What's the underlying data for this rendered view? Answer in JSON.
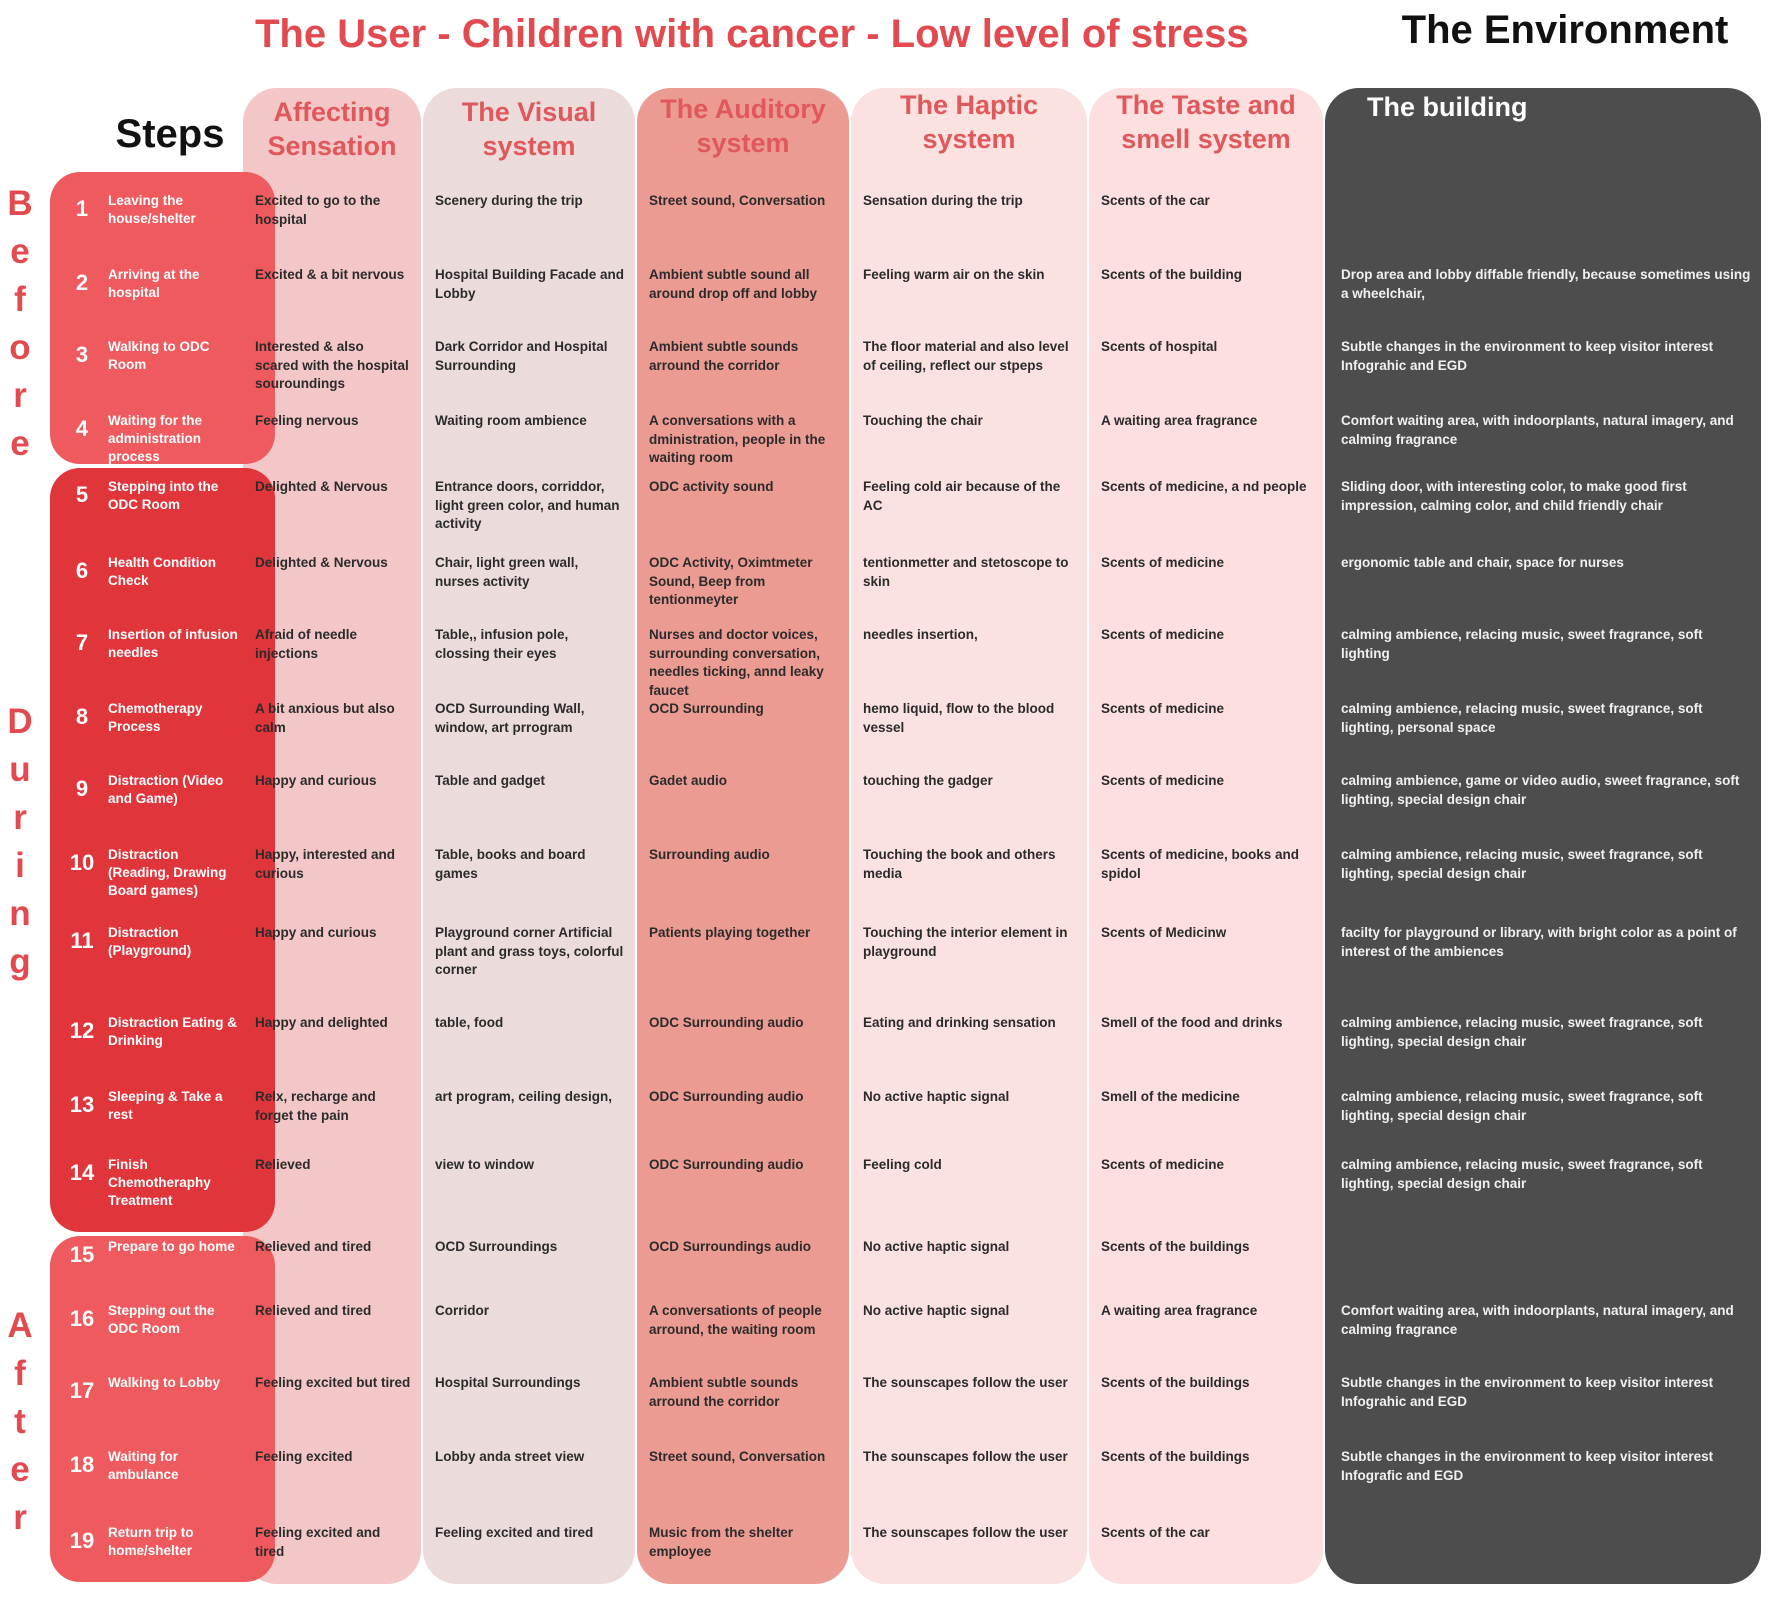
{
  "title": "The User - Children with cancer - Low level of stress",
  "environment_title": "The Environment",
  "steps_header": "Steps",
  "columns": [
    {
      "label": "Affecting Sensation",
      "color": "#f3c6c7"
    },
    {
      "label": "The Visual system",
      "color": "#ebdcdb"
    },
    {
      "label": "The Auditory system",
      "color": "#ec9b92"
    },
    {
      "label": "The Haptic system",
      "color": "#fbe1e0"
    },
    {
      "label": "The Taste and smell system",
      "color": "#fcdfde"
    },
    {
      "label": "The building",
      "color": "#4d4d4d"
    }
  ],
  "phases": [
    {
      "name": "Before",
      "letters": [
        "B",
        "e",
        "f",
        "o",
        "r",
        "e"
      ],
      "color": "#ef5a5e"
    },
    {
      "name": "During",
      "letters": [
        "D",
        "u",
        "r",
        "i",
        "n",
        "g"
      ],
      "color": "#e0353b"
    },
    {
      "name": "After",
      "letters": [
        "A",
        "f",
        "t",
        "e",
        "r"
      ],
      "color": "#ef5a5e"
    }
  ],
  "steps": [
    {
      "num": "1",
      "label": "Leaving the house/shelter",
      "affecting": "Excited to go to the hospital",
      "visual": "Scenery during the trip",
      "auditory": "Street sound, Conversation",
      "haptic": "Sensation during the trip",
      "taste_smell": "Scents of the car",
      "building": ""
    },
    {
      "num": "2",
      "label": "Arriving at the hospital",
      "affecting": "Excited & a bit nervous",
      "visual": "Hospital Building Facade and Lobby",
      "auditory": "Ambient subtle sound all around drop off and lobby",
      "haptic": "Feeling warm air on the skin",
      "taste_smell": "Scents of the building",
      "building": "Drop area and lobby diffable friendly, because sometimes using a wheelchair,"
    },
    {
      "num": "3",
      "label": "Walking to ODC Room",
      "affecting": "Interested & also scared with the hospital souroundings",
      "visual": "Dark Corridor and Hospital Surrounding",
      "auditory": "Ambient subtle sounds arround the corridor",
      "haptic": "The floor material and also level of ceiling, reflect our stpeps",
      "taste_smell": "Scents of hospital",
      "building": "Subtle changes in the environment to keep visitor interest Infograhic and EGD"
    },
    {
      "num": "4",
      "label": "Waiting for the administration process",
      "affecting": "Feeling nervous",
      "visual": "Waiting room ambience",
      "auditory": "A conversations with a dministration, people in the waiting room",
      "haptic": "Touching the chair",
      "taste_smell": "A waiting area fragrance",
      "building": "Comfort waiting area, with indoorplants, natural imagery, and calming fragrance"
    },
    {
      "num": "5",
      "label": "Stepping into the ODC Room",
      "affecting": "Delighted & Nervous",
      "visual": "Entrance doors, corriddor, light green color, and human activity",
      "auditory": "ODC activity sound",
      "haptic": "Feeling cold air because of the AC",
      "taste_smell": "Scents of medicine, a nd people",
      "building": "Sliding door, with interesting color, to make good first impression, calming color, and child friendly chair"
    },
    {
      "num": "6",
      "label": "Health Condition Check",
      "affecting": "Delighted & Nervous",
      "visual": "Chair, light green wall, nurses activity",
      "auditory": "ODC Activity, Oximtmeter Sound, Beep from tentionmeyter",
      "haptic": "tentionmetter and stetoscope to skin",
      "taste_smell": "Scents of medicine",
      "building": "ergonomic table and chair, space for nurses"
    },
    {
      "num": "7",
      "label": "Insertion of infusion needles",
      "affecting": "Afraid of needle injections",
      "visual": "Table,, infusion pole, clossing their eyes",
      "auditory": "Nurses and doctor voices, surrounding conversation, needles ticking, annd leaky faucet",
      "haptic": "needles insertion,",
      "taste_smell": "Scents of medicine",
      "building": "calming ambience, relacing music, sweet fragrance, soft lighting"
    },
    {
      "num": "8",
      "label": "Chemotherapy Process",
      "affecting": "A bit anxious but also calm",
      "visual": "OCD Surrounding Wall, window, art prrogram",
      "auditory": "OCD Surrounding",
      "haptic": "hemo liquid, flow to the blood vessel",
      "taste_smell": "Scents of medicine",
      "building": "calming ambience, relacing music, sweet fragrance, soft lighting, personal space"
    },
    {
      "num": "9",
      "label": "Distraction (Video and Game)",
      "affecting": "Happy and curious",
      "visual": "Table and gadget",
      "auditory": "Gadet audio",
      "haptic": "touching the gadger",
      "taste_smell": "Scents of medicine",
      "building": "calming ambience, game or video audio, sweet fragrance, soft lighting, special design chair"
    },
    {
      "num": "10",
      "label": "Distraction (Reading, Drawing Board games)",
      "affecting": "Happy, interested and curious",
      "visual": "Table, books and board games",
      "auditory": "Surrounding audio",
      "haptic": "Touching the book and others media",
      "taste_smell": "Scents of medicine, books and spidol",
      "building": "calming ambience, relacing music, sweet fragrance, soft lighting, special design chair"
    },
    {
      "num": "11",
      "label": "Distraction (Playground)",
      "affecting": "Happy and curious",
      "visual": "Playground corner Artificial plant and grass toys, colorful corner",
      "auditory": "Patients playing together",
      "haptic": "Touching the interior element in playground",
      "taste_smell": "Scents of Medicinw",
      "building": "facilty for playground or library, with bright color as a point of interest of the ambiences"
    },
    {
      "num": "12",
      "label": "Distraction Eating & Drinking",
      "affecting": "Happy and delighted",
      "visual": "table, food",
      "auditory": "ODC Surrounding audio",
      "haptic": "Eating and drinking sensation",
      "taste_smell": "Smell of the food and drinks",
      "building": "calming ambience, relacing music, sweet fragrance, soft lighting, special design chair"
    },
    {
      "num": "13",
      "label": "Sleeping & Take a rest",
      "affecting": "Relx, recharge and forget the pain",
      "visual": "art program, ceiling design,",
      "auditory": "ODC Surrounding audio",
      "haptic": "No active haptic signal",
      "taste_smell": "Smell of the medicine",
      "building": "calming ambience, relacing music, sweet fragrance, soft lighting, special design chair"
    },
    {
      "num": "14",
      "label": "Finish Chemotheraphy Treatment",
      "affecting": "Relieved",
      "visual": "view to window",
      "auditory": "ODC Surrounding audio",
      "haptic": "Feeling cold",
      "taste_smell": "Scents of medicine",
      "building": "calming ambience, relacing music, sweet fragrance, soft lighting, special design chair"
    },
    {
      "num": "15",
      "label": "Prepare to go home",
      "affecting": "Relieved and tired",
      "visual": "OCD Surroundings",
      "auditory": "OCD Surroundings audio",
      "haptic": "No active haptic signal",
      "taste_smell": "Scents of the buildings",
      "building": ""
    },
    {
      "num": "16",
      "label": "Stepping out the ODC Room",
      "affecting": "Relieved and tired",
      "visual": "Corridor",
      "auditory": "A conversationts of people arround, the waiting room",
      "haptic": "No active haptic signal",
      "taste_smell": "A waiting area fragrance",
      "building": "Comfort waiting area, with indoorplants, natural imagery, and calming fragrance"
    },
    {
      "num": "17",
      "label": "Walking to Lobby",
      "affecting": "Feeling excited but tired",
      "visual": "Hospital Surroundings",
      "auditory": "Ambient subtle sounds arround the corridor",
      "haptic": "The sounscapes follow the user",
      "taste_smell": "Scents of the buildings",
      "building": "Subtle changes in the environment to keep visitor interest Infograhic and EGD"
    },
    {
      "num": "18",
      "label": "Waiting for ambulance",
      "affecting": "Feeling excited",
      "visual": "Lobby anda street view",
      "auditory": "Street sound, Conversation",
      "haptic": "The sounscapes follow the user",
      "taste_smell": "Scents of the buildings",
      "building": "Subtle changes in the environment to keep visitor interest Infografic and EGD"
    },
    {
      "num": "19",
      "label": "Return trip to home/shelter",
      "affecting": "Feeling excited and tired",
      "visual": "Feeling excited and tired",
      "auditory": "Music from the shelter employee",
      "haptic": "The sounscapes follow the user",
      "taste_smell": "Scents of the car",
      "building": ""
    }
  ]
}
